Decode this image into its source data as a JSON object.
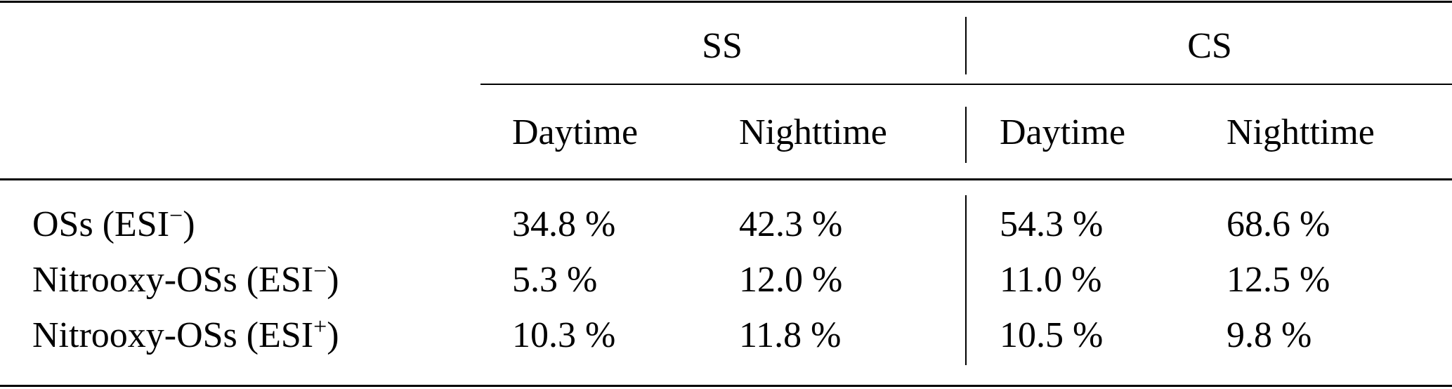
{
  "table": {
    "groups": [
      "SS",
      "CS"
    ],
    "subheaders": [
      "Daytime",
      "Nighttime",
      "Daytime",
      "Nighttime"
    ],
    "rows": [
      {
        "label": "OSs (ESI",
        "sign": "−",
        "close": ")",
        "values": [
          "34.8 %",
          "42.3 %",
          "54.3 %",
          "68.6 %"
        ]
      },
      {
        "label": "Nitrooxy-OSs (ESI",
        "sign": "−",
        "close": ")",
        "values": [
          "5.3 %",
          "12.0 %",
          "11.0 %",
          "12.5 %"
        ]
      },
      {
        "label": "Nitrooxy-OSs (ESI",
        "sign": "+",
        "close": ")",
        "values": [
          "10.3 %",
          "11.8 %",
          "10.5 %",
          "9.8 %"
        ]
      }
    ]
  }
}
